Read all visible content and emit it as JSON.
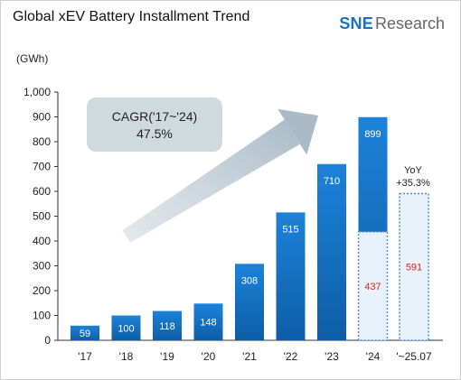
{
  "header": {
    "title": "Global xEV Battery Installment Trend",
    "brand_sne": "SNE",
    "brand_research": "Research"
  },
  "chart_data": {
    "type": "bar",
    "title": "Global xEV Battery Installment Trend",
    "unit_label": "(GWh)",
    "categories": [
      "'17",
      "'18",
      "'19",
      "'20",
      "'21",
      "'22",
      "'23",
      "'24",
      "'~25.07"
    ],
    "values": [
      59,
      100,
      118,
      148,
      308,
      515,
      710,
      899,
      591
    ],
    "partial": [
      {
        "category": "'24",
        "value": 437
      }
    ],
    "ylim": [
      0,
      1000
    ],
    "yticks": [
      0,
      100,
      200,
      300,
      400,
      500,
      600,
      700,
      800,
      900,
      1000
    ],
    "ytick_labels": [
      "0",
      "100",
      "200",
      "300",
      "400",
      "500",
      "600",
      "700",
      "800",
      "900",
      "1,000"
    ],
    "grid": false,
    "annotations": {
      "cagr_line1": "CAGR('17~'24)",
      "cagr_line2": "47.5%",
      "yoy_line1": "YoY",
      "yoy_line2": "+35.3%"
    },
    "colors": {
      "bar_top": "#1a7fd6",
      "bar_bottom": "#0f5fa8",
      "partial_fill": "#e9f1fb",
      "partial_border": "#4a8fd6",
      "partial_label": "#e02020",
      "bar_label": "#ffffff",
      "arrow": "#b8c6d0",
      "cagr_box": "#cfd9de"
    }
  }
}
